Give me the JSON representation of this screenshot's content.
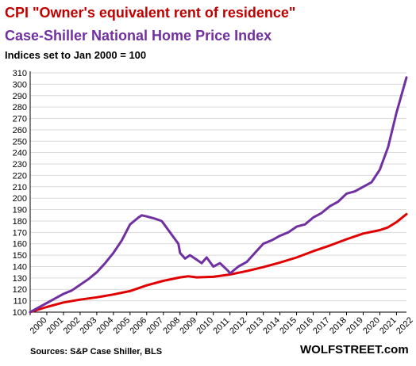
{
  "title_line1": "CPI \"Owner's equivalent rent of residence\"",
  "title_line2": "Case-Shiller  National  Home Price Index",
  "subtitle": "Indices set to Jan 2000 = 100",
  "source": "Sources: S&P Case Shiller, BLS",
  "brand": "WOLFSTREET.com",
  "colors": {
    "oer": "#e00000",
    "case_shiller": "#7030a0",
    "grid": "#d9d9d9",
    "axis": "#000000"
  },
  "chart_data": {
    "type": "line",
    "title": "CPI \"Owner's equivalent rent of residence\" / Case-Shiller National Home Price Index",
    "subtitle": "Indices set to Jan 2000 = 100",
    "xlim": [
      2000,
      2022.6
    ],
    "ylim": [
      100,
      310
    ],
    "y_ticks": [
      100,
      110,
      120,
      130,
      140,
      150,
      160,
      170,
      180,
      190,
      200,
      210,
      220,
      230,
      240,
      250,
      260,
      270,
      280,
      290,
      300,
      310
    ],
    "x_ticks": [
      "2000",
      "2001",
      "2002",
      "2003",
      "2004",
      "2005",
      "2006",
      "2007",
      "2008",
      "2009",
      "2010",
      "2011",
      "2012",
      "2013",
      "2014",
      "2015",
      "2016",
      "2017",
      "2018",
      "2019",
      "2020",
      "2021",
      "2022"
    ],
    "grid": "horizontal",
    "series": [
      {
        "name": "CPI \"Owner's equivalent rent of residence\"",
        "color": "#e00000",
        "points": [
          [
            2000,
            100
          ],
          [
            2001,
            104.5
          ],
          [
            2002,
            108.5
          ],
          [
            2003,
            111
          ],
          [
            2004,
            113
          ],
          [
            2005,
            115.5
          ],
          [
            2006,
            118.5
          ],
          [
            2007,
            123.5
          ],
          [
            2008,
            127.5
          ],
          [
            2009,
            130.5
          ],
          [
            2009.5,
            131.5
          ],
          [
            2010,
            130.5
          ],
          [
            2011,
            131
          ],
          [
            2012,
            133
          ],
          [
            2013,
            136
          ],
          [
            2014,
            139.5
          ],
          [
            2015,
            143.5
          ],
          [
            2016,
            148
          ],
          [
            2017,
            153.5
          ],
          [
            2018,
            158.5
          ],
          [
            2019,
            164
          ],
          [
            2020,
            169
          ],
          [
            2021,
            172
          ],
          [
            2021.5,
            174.5
          ],
          [
            2022,
            179
          ],
          [
            2022.6,
            186
          ]
        ]
      },
      {
        "name": "Case-Shiller National Home Price Index",
        "color": "#7030a0",
        "points": [
          [
            2000,
            100
          ],
          [
            2000.5,
            104
          ],
          [
            2001,
            108
          ],
          [
            2001.5,
            112
          ],
          [
            2002,
            116
          ],
          [
            2002.5,
            119
          ],
          [
            2003,
            124
          ],
          [
            2003.5,
            129
          ],
          [
            2004,
            135
          ],
          [
            2004.5,
            143
          ],
          [
            2005,
            152
          ],
          [
            2005.5,
            163
          ],
          [
            2006,
            177
          ],
          [
            2006.5,
            183
          ],
          [
            2006.7,
            185
          ],
          [
            2007,
            184
          ],
          [
            2007.5,
            182
          ],
          [
            2007.9,
            180
          ],
          [
            2008,
            178
          ],
          [
            2008.5,
            168
          ],
          [
            2008.9,
            160
          ],
          [
            2009,
            152
          ],
          [
            2009.3,
            147
          ],
          [
            2009.6,
            150
          ],
          [
            2010,
            146
          ],
          [
            2010.3,
            143
          ],
          [
            2010.6,
            148
          ],
          [
            2011,
            140
          ],
          [
            2011.4,
            143
          ],
          [
            2011.9,
            136
          ],
          [
            2012,
            134
          ],
          [
            2012.5,
            140
          ],
          [
            2013,
            144
          ],
          [
            2013.5,
            152
          ],
          [
            2014,
            160
          ],
          [
            2014.5,
            163
          ],
          [
            2015,
            167
          ],
          [
            2015.5,
            170
          ],
          [
            2016,
            175
          ],
          [
            2016.5,
            177
          ],
          [
            2017,
            183
          ],
          [
            2017.5,
            187
          ],
          [
            2018,
            193
          ],
          [
            2018.5,
            197
          ],
          [
            2019,
            204
          ],
          [
            2019.5,
            206
          ],
          [
            2020,
            210
          ],
          [
            2020.5,
            214
          ],
          [
            2021,
            225
          ],
          [
            2021.5,
            245
          ],
          [
            2022,
            275
          ],
          [
            2022.6,
            306
          ]
        ]
      }
    ]
  }
}
